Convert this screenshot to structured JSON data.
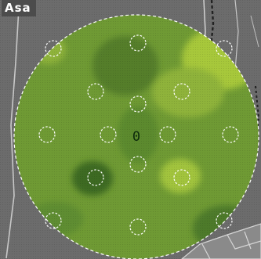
{
  "map": {
    "label": "Asa",
    "centre_marker": "0",
    "circle_count": 16
  },
  "colors": {
    "background_gray": "#6c6c6c",
    "road_line": "#d9d9d9",
    "road_dash": "#222222",
    "field_base": "#6f9a34",
    "field_light": "#a7c83a",
    "field_dark": "#3d6a24",
    "circle_outline": "#ffffff",
    "label_background": "#4c4c4c",
    "label_text": "#ffffff",
    "centre_marker_color": "#0c2a0c"
  }
}
